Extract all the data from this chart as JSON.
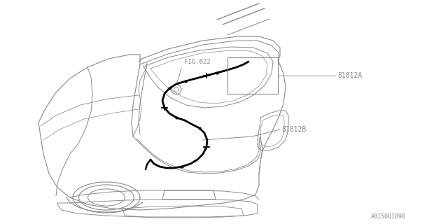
{
  "background_color": "#ffffff",
  "line_color": "#888888",
  "dark_line_color": "#000000",
  "label_81812A": "81812A",
  "label_81812B": "81812B",
  "label_fig622": "FIG.622",
  "label_ref": "A815001098",
  "fig_width": 6.4,
  "fig_height": 3.2,
  "dpi": 100
}
